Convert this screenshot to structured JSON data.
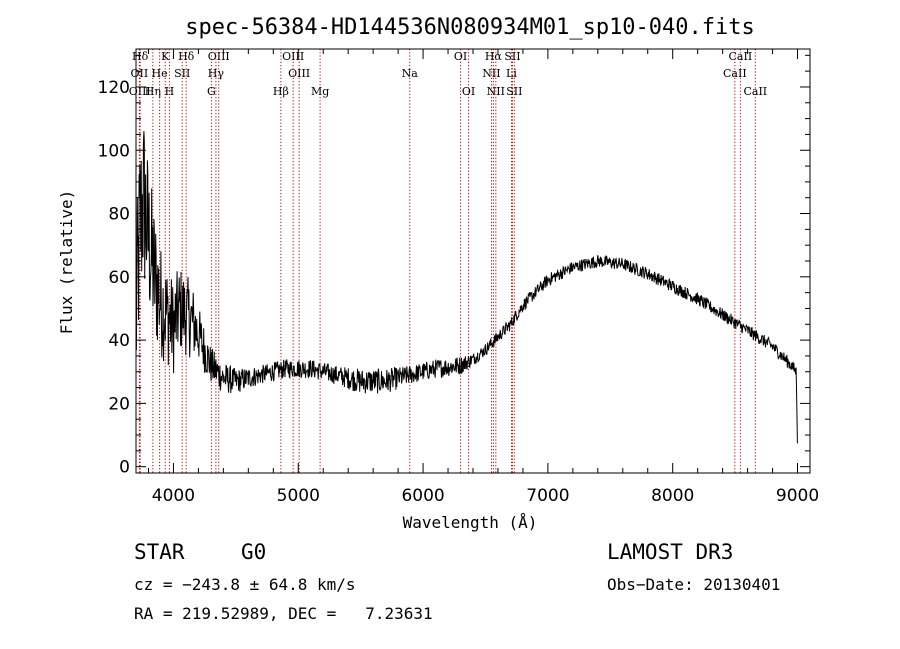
{
  "chart_data": {
    "type": "line",
    "title": "spec-56384-HD144536N080934M01_sp10-040.fits",
    "xlabel": "Wavelength (Å)",
    "ylabel": "Flux (relative)",
    "xlim": [
      3700,
      9100
    ],
    "ylim": [
      -2,
      132
    ],
    "xticks": [
      4000,
      5000,
      6000,
      7000,
      8000,
      9000
    ],
    "yticks": [
      0,
      20,
      40,
      60,
      80,
      100,
      120
    ],
    "spectrum_anchors": {
      "x": [
        3700,
        3730,
        3760,
        3800,
        3850,
        3900,
        3950,
        4000,
        4050,
        4100,
        4150,
        4200,
        4300,
        4400,
        4500,
        4700,
        4900,
        5100,
        5300,
        5500,
        5700,
        5900,
        6100,
        6300,
        6400,
        6500,
        6600,
        6700,
        6800,
        6900,
        7000,
        7200,
        7400,
        7600,
        7800,
        8000,
        8200,
        8400,
        8600,
        8800,
        8950,
        8990,
        9000
      ],
      "y": [
        45,
        75,
        85,
        72,
        60,
        52,
        48,
        44,
        50,
        48,
        46,
        42,
        32,
        28,
        27,
        29,
        31,
        31,
        29,
        27,
        27,
        29,
        31,
        32,
        34,
        37,
        41,
        45,
        51,
        55,
        59,
        63,
        65,
        64,
        61,
        57,
        53,
        48,
        43,
        38,
        32,
        30,
        5
      ],
      "noise_amplitude": [
        30,
        30,
        30,
        25,
        22,
        18,
        16,
        15,
        14,
        13,
        12,
        9,
        6,
        5,
        4,
        3,
        3,
        3,
        3,
        4,
        4,
        3,
        3,
        3,
        2,
        2,
        2,
        2,
        2,
        2,
        2,
        2,
        2,
        2,
        2,
        2,
        2,
        2,
        2,
        2,
        2,
        2,
        0
      ]
    },
    "spectral_lines": [
      {
        "name": "Hδ",
        "x": 3733,
        "row": 0
      },
      {
        "name": "K",
        "x": 3934,
        "row": 0
      },
      {
        "name": "Hδ",
        "x": 4102,
        "row": 0
      },
      {
        "name": "OIII",
        "x": 4363,
        "row": 0
      },
      {
        "name": "OIII",
        "x": 4959,
        "row": 0
      },
      {
        "name": "OI",
        "x": 6300,
        "row": 0
      },
      {
        "name": "Hα",
        "x": 6563,
        "row": 0
      },
      {
        "name": "SII",
        "x": 6716,
        "row": 0
      },
      {
        "name": "CaII",
        "x": 8542,
        "row": 0
      },
      {
        "name": "OII",
        "x": 3727,
        "row": 1
      },
      {
        "name": "He",
        "x": 3889,
        "row": 1
      },
      {
        "name": "SII",
        "x": 4070,
        "row": 1
      },
      {
        "name": "Hγ",
        "x": 4340,
        "row": 1
      },
      {
        "name": "OIII",
        "x": 5007,
        "row": 1
      },
      {
        "name": "Na",
        "x": 5893,
        "row": 1
      },
      {
        "name": "NII",
        "x": 6548,
        "row": 1
      },
      {
        "name": "Li",
        "x": 6708,
        "row": 1
      },
      {
        "name": "CaII",
        "x": 8498,
        "row": 1
      },
      {
        "name": "OIII",
        "x": 3730,
        "row": 2
      },
      {
        "name": "Hη",
        "x": 3835,
        "row": 2
      },
      {
        "name": "H",
        "x": 3968,
        "row": 2
      },
      {
        "name": "G",
        "x": 4304,
        "row": 2
      },
      {
        "name": "Hβ",
        "x": 4861,
        "row": 2
      },
      {
        "name": "Mg",
        "x": 5175,
        "row": 2
      },
      {
        "name": "OI",
        "x": 6364,
        "row": 2
      },
      {
        "name": "NII",
        "x": 6583,
        "row": 2
      },
      {
        "name": "SII",
        "x": 6731,
        "row": 2
      },
      {
        "name": "CaII",
        "x": 8662,
        "row": 2
      }
    ]
  },
  "info": {
    "object_class": "STAR",
    "subclass": "G0",
    "survey": "LAMOST DR3",
    "cz_line": "cz = −243.8 ± 64.8 km/s",
    "obs_date_line": "Obs−Date: 20130401",
    "coords_line": "RA = 219.52989, DEC =   7.23631"
  },
  "colors": {
    "axis": "#000000",
    "spectrum": "#000000",
    "line_marker": "#cc0000"
  }
}
